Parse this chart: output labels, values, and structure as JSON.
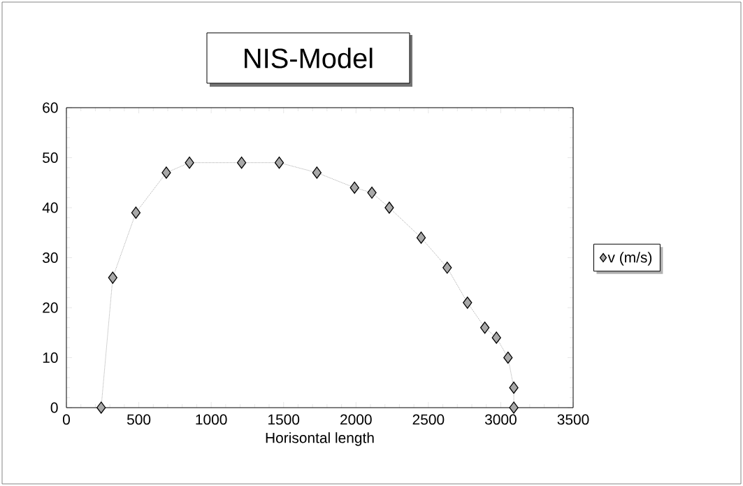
{
  "chart_data": {
    "type": "line",
    "title": "NIS-Model",
    "xlabel": "Horisontal length",
    "x": [
      240,
      320,
      480,
      690,
      850,
      1210,
      1470,
      1730,
      1990,
      2110,
      2230,
      2450,
      2630,
      2770,
      2890,
      2970,
      3050,
      3090,
      3090
    ],
    "series": [
      {
        "name": "v (m/s)",
        "color": "#a8a8a8",
        "values": [
          0,
          26,
          39,
          47,
          49,
          49,
          49,
          47,
          44,
          43,
          40,
          34,
          28,
          21,
          16,
          14,
          10,
          4,
          0
        ]
      }
    ],
    "xlim": [
      0,
      3500
    ],
    "xticks": [
      0,
      500,
      1000,
      1500,
      2000,
      2500,
      3000,
      3500
    ],
    "ylim": [
      0,
      60
    ],
    "yticks": [
      0,
      10,
      20,
      30,
      40,
      50,
      60
    ],
    "marker": "diamond",
    "line_style": "dotted",
    "legend": "right"
  }
}
